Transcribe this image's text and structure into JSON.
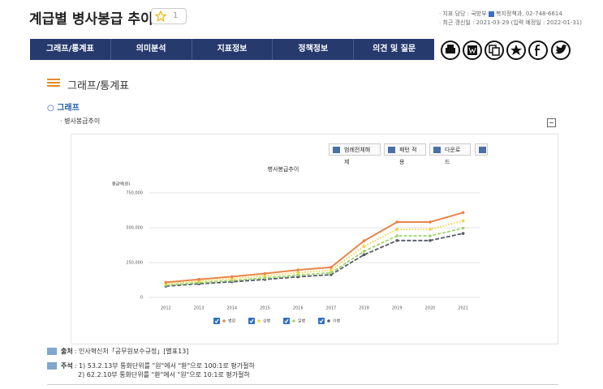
{
  "header": {
    "title": "계급별 병사봉급 추이",
    "star_count": 1
  },
  "info": {
    "line1": "· 지표 담당 : 국방부",
    "dept": "복지정책과, 02-748-6614",
    "line2": "· 최근 갱신일 : 2021-03-29 (입력 예정일 : 2022-01-31)"
  },
  "tabs": [
    "그래프/통계표",
    "의미분석",
    "지표정보",
    "정책정보",
    "의견 및 질문"
  ],
  "section": {
    "heading": "그래프/통계표",
    "subheading": "○ 그래프",
    "chart_name": "· 병사봉급추이"
  },
  "buttons": [
    "범례전체해제",
    "패턴 적용",
    "다운로드"
  ],
  "chart_data": {
    "type": "line",
    "title": "병사봉급추이",
    "y_label": "봉급액(원)",
    "categories": [
      "2012",
      "2013",
      "2014",
      "2015",
      "2016",
      "2017",
      "2018",
      "2019",
      "2020",
      "2021"
    ],
    "series": [
      {
        "name": "병장",
        "color": "#e8854a",
        "values": [
          108000,
          129600,
          149000,
          171400,
          197100,
          216000,
          405700,
          540900,
          540900,
          608500
        ]
      },
      {
        "name": "상병",
        "color": "#f2d33c",
        "values": [
          97500,
          117000,
          134600,
          154800,
          178000,
          195000,
          366200,
          488200,
          488200,
          549200
        ]
      },
      {
        "name": "일병",
        "color": "#9fd66a",
        "values": [
          88000,
          105800,
          121700,
          140000,
          161000,
          176400,
          331300,
          441700,
          441700,
          496900
        ]
      },
      {
        "name": "이병",
        "color": "#555b66",
        "values": [
          81000,
          97500,
          112100,
          129000,
          148000,
          163000,
          306100,
          408100,
          408100,
          459100
        ]
      }
    ],
    "ylim": [
      0,
      750000
    ],
    "yticks": [
      0,
      {
        "value": 250000,
        "label": "250,000"
      },
      {
        "value": 500000,
        "label": "500,000"
      },
      {
        "value": 750000,
        "label": "750,000"
      }
    ],
    "grid": true
  },
  "source": {
    "label": "출처",
    "text": ": 인사혁신처「공무원보수규정」[별표13]"
  },
  "notes": {
    "label": "주석",
    "lines": [
      ": 1) 53.2.13부 통화단위를 \"원\"에서 \"환\"으로 100:1로 평가절하",
      "2) 62.2.10부 통화단위를 \"환\"에서 \"원\"으로 10:1로 평가절하"
    ]
  }
}
